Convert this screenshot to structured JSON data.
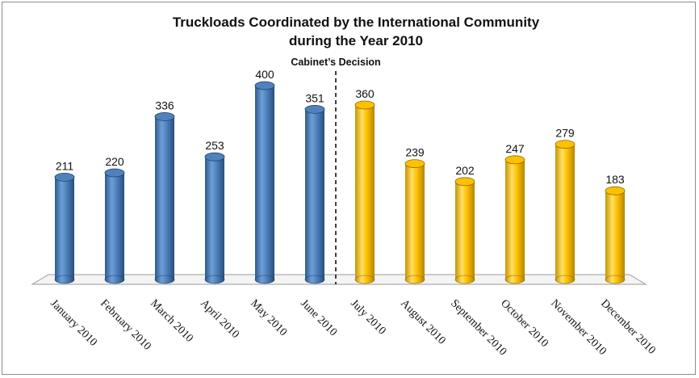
{
  "chart_data": {
    "type": "bar",
    "title": "Truckloads Coordinated by the International Community",
    "subtitle": "during the Year 2010",
    "annotation": "Cabinet’s Decision",
    "categories": [
      "January 2010",
      "February 2010",
      "March 2010",
      "April 2010",
      "May 2010",
      "June 2010",
      "July 2010",
      "August 2010",
      "September 2010",
      "October 2010",
      "November 2010",
      "December 2010"
    ],
    "values": [
      211,
      220,
      336,
      253,
      400,
      351,
      360,
      239,
      202,
      247,
      279,
      183
    ],
    "colors": {
      "before_decision": "#4f81bd",
      "after_decision": "#ffc000"
    },
    "decision_after_category": "June 2010",
    "ylim": [
      0,
      400
    ],
    "grid": false,
    "legend": "none"
  }
}
